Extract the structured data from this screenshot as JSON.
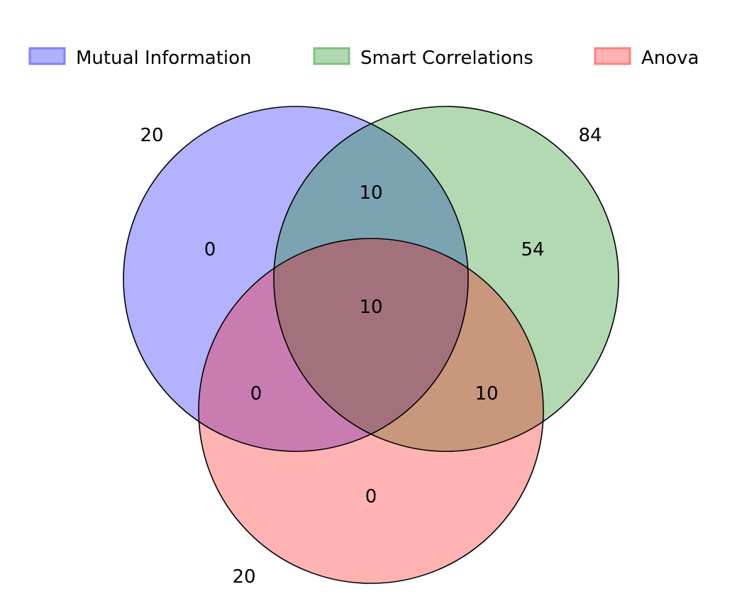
{
  "legend": {
    "placement": "top",
    "items": [
      {
        "label": "Mutual Information",
        "color": "#0000ff"
      },
      {
        "label": "Smart Correlations",
        "color": "#008000"
      },
      {
        "label": "Anova",
        "color": "#ff0000"
      }
    ]
  },
  "sets": [
    {
      "name": "Mutual Information",
      "total": "20",
      "color": "#0000ff",
      "opacity": 0.3
    },
    {
      "name": "Smart Correlations",
      "total": "84",
      "color": "#008000",
      "opacity": 0.3
    },
    {
      "name": "Anova",
      "total": "20",
      "color": "#ff0000",
      "opacity": 0.3
    }
  ],
  "regions": {
    "mi_only": "0",
    "mi_sc": "10",
    "sc_only": "54",
    "all_three": "10",
    "mi_an": "0",
    "sc_an": "10",
    "an_only": "0"
  },
  "outline_color": "#000000"
}
